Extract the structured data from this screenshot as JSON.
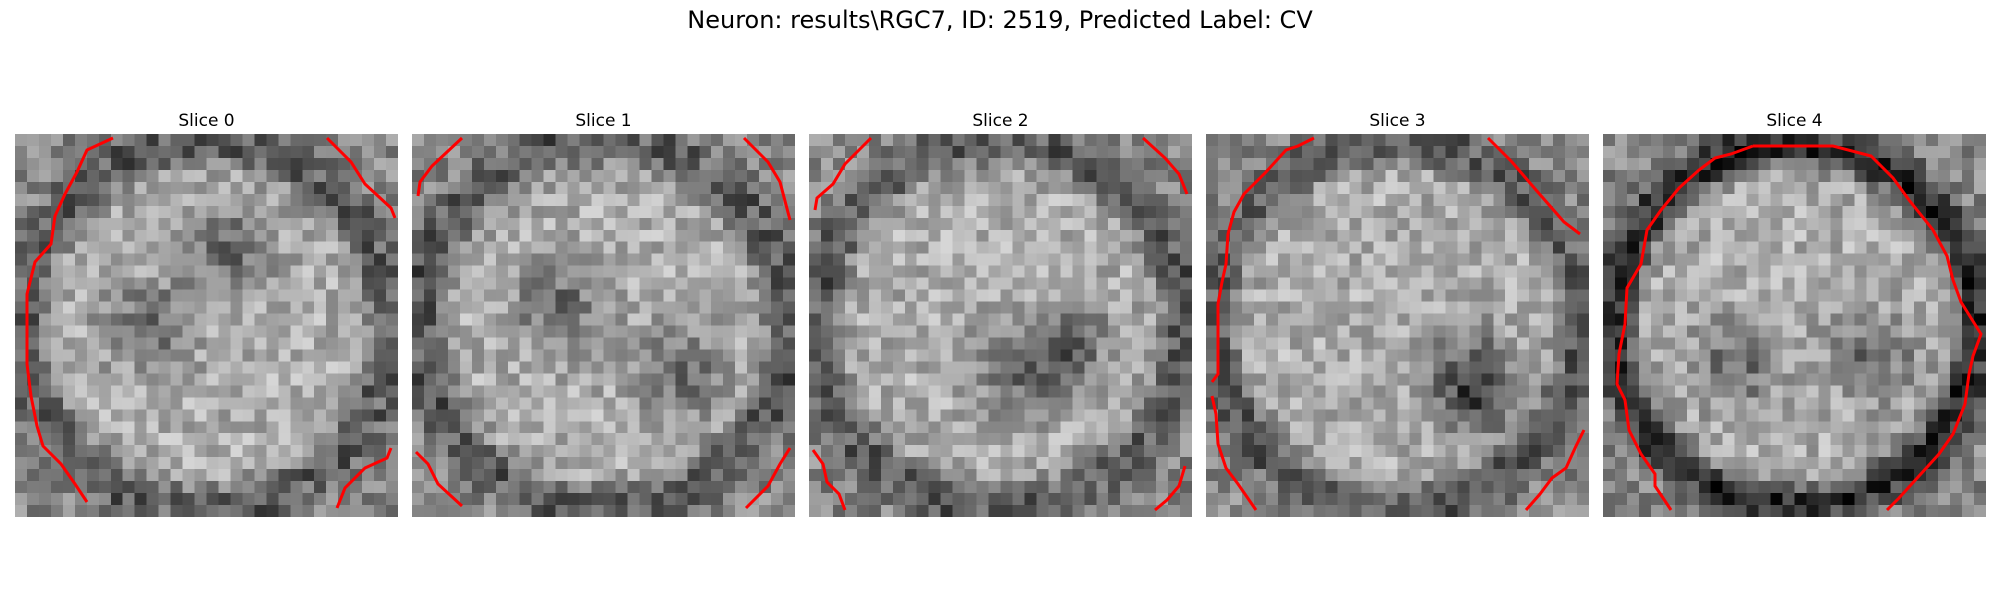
{
  "figure": {
    "title": "Neuron: results\\RGC7, ID: 2519, Predicted Label: CV"
  },
  "colors": {
    "contour": "#ff0000",
    "colormap": "gray"
  },
  "slices": [
    {
      "title": "Slice 0",
      "dark_blob_centers": [
        [
          0.55,
          0.3
        ],
        [
          0.35,
          0.5
        ]
      ]
    },
    {
      "title": "Slice 1",
      "dark_blob_centers": [
        [
          0.38,
          0.45
        ],
        [
          0.7,
          0.62
        ]
      ]
    },
    {
      "title": "Slice 2",
      "dark_blob_centers": [
        [
          0.68,
          0.55
        ],
        [
          0.55,
          0.62
        ]
      ]
    },
    {
      "title": "Slice 3",
      "dark_blob_centers": [
        [
          0.68,
          0.62
        ],
        [
          0.72,
          0.7
        ]
      ]
    },
    {
      "title": "Slice 4",
      "dark_blob_centers": [
        [
          0.7,
          0.58
        ],
        [
          0.35,
          0.6
        ]
      ]
    }
  ]
}
